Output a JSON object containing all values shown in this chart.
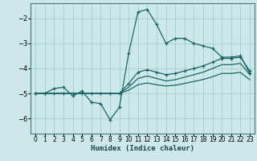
{
  "xlabel": "Humidex (Indice chaleur)",
  "background_color": "#cde8e8",
  "grid_color": "#aacccc",
  "line_color": "#1a6666",
  "xlim": [
    -0.5,
    23.5
  ],
  "ylim": [
    -6.6,
    -1.4
  ],
  "yticks": [
    -6,
    -5,
    -4,
    -3,
    -2
  ],
  "xticks": [
    0,
    1,
    2,
    3,
    4,
    5,
    6,
    7,
    8,
    9,
    10,
    11,
    12,
    13,
    14,
    15,
    16,
    17,
    18,
    19,
    20,
    21,
    22,
    23
  ],
  "series": [
    {
      "x": [
        0,
        1,
        2,
        3,
        4,
        5,
        6,
        7,
        8,
        9,
        10,
        11,
        12,
        13,
        14,
        15,
        16,
        17,
        18,
        19,
        20,
        21,
        22,
        23
      ],
      "y": [
        -5.0,
        -5.0,
        -4.8,
        -4.75,
        -5.1,
        -4.9,
        -5.35,
        -5.4,
        -6.05,
        -5.55,
        -3.4,
        -1.75,
        -1.65,
        -2.25,
        -3.0,
        -2.8,
        -2.8,
        -3.0,
        -3.1,
        -3.2,
        -3.55,
        -3.55,
        -3.5,
        -4.2
      ],
      "marker": true
    },
    {
      "x": [
        0,
        1,
        2,
        3,
        4,
        5,
        6,
        7,
        8,
        9,
        10,
        11,
        12,
        13,
        14,
        15,
        16,
        17,
        18,
        19,
        20,
        21,
        22,
        23
      ],
      "y": [
        -5.0,
        -5.0,
        -5.0,
        -5.0,
        -5.0,
        -5.0,
        -5.0,
        -5.0,
        -5.0,
        -5.0,
        -4.6,
        -4.15,
        -4.05,
        -4.15,
        -4.25,
        -4.2,
        -4.1,
        -4.0,
        -3.9,
        -3.75,
        -3.6,
        -3.6,
        -3.55,
        -4.1
      ],
      "marker": true
    },
    {
      "x": [
        0,
        1,
        2,
        3,
        4,
        5,
        6,
        7,
        8,
        9,
        10,
        11,
        12,
        13,
        14,
        15,
        16,
        17,
        18,
        19,
        20,
        21,
        22,
        23
      ],
      "y": [
        -5.0,
        -5.0,
        -5.0,
        -5.0,
        -5.0,
        -5.0,
        -5.0,
        -5.0,
        -5.0,
        -5.0,
        -4.75,
        -4.4,
        -4.3,
        -4.4,
        -4.5,
        -4.45,
        -4.35,
        -4.25,
        -4.15,
        -4.0,
        -3.85,
        -3.85,
        -3.8,
        -4.25
      ],
      "marker": false
    },
    {
      "x": [
        0,
        1,
        2,
        3,
        4,
        5,
        6,
        7,
        8,
        9,
        10,
        11,
        12,
        13,
        14,
        15,
        16,
        17,
        18,
        19,
        20,
        21,
        22,
        23
      ],
      "y": [
        -5.0,
        -5.0,
        -5.0,
        -5.0,
        -5.0,
        -5.0,
        -5.0,
        -5.0,
        -5.0,
        -5.0,
        -4.87,
        -4.65,
        -4.58,
        -4.65,
        -4.7,
        -4.67,
        -4.6,
        -4.52,
        -4.44,
        -4.33,
        -4.2,
        -4.2,
        -4.16,
        -4.45
      ],
      "marker": false
    }
  ]
}
